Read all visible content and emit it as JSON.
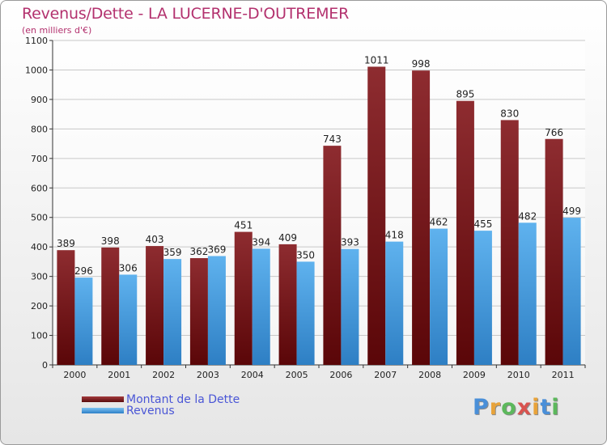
{
  "chart_data": {
    "type": "bar",
    "title": "Revenus/Dette - LA LUCERNE-D'OUTREMER",
    "subtitle": "(en milliers d'€)",
    "categories": [
      "2000",
      "2001",
      "2002",
      "2003",
      "2004",
      "2005",
      "2006",
      "2007",
      "2008",
      "2009",
      "2010",
      "2011"
    ],
    "series": [
      {
        "name": "Montant de la Dette",
        "color": "#7a1e20",
        "values": [
          389,
          398,
          403,
          362,
          451,
          409,
          743,
          1011,
          998,
          895,
          830,
          766
        ]
      },
      {
        "name": "Revenus",
        "color": "#4aa3e6",
        "values": [
          296,
          306,
          359,
          369,
          394,
          350,
          393,
          418,
          462,
          455,
          482,
          499
        ]
      }
    ],
    "ylim": [
      0,
      1100
    ],
    "yticks": [
      0,
      100,
      200,
      300,
      400,
      500,
      600,
      700,
      800,
      900,
      1000,
      1100
    ],
    "grid": true,
    "legend_position": "bottom-left"
  },
  "legend": {
    "debt_label": "Montant de la Dette",
    "revenue_label": "Revenus"
  },
  "brand": {
    "letters": [
      "P",
      "r",
      "o",
      "x",
      "i",
      "t",
      "i"
    ],
    "colors": [
      "#4a8fd8",
      "#e8a33a",
      "#5cb85c",
      "#d9534f",
      "#e8a33a",
      "#4a8fd8",
      "#5cb85c"
    ]
  }
}
